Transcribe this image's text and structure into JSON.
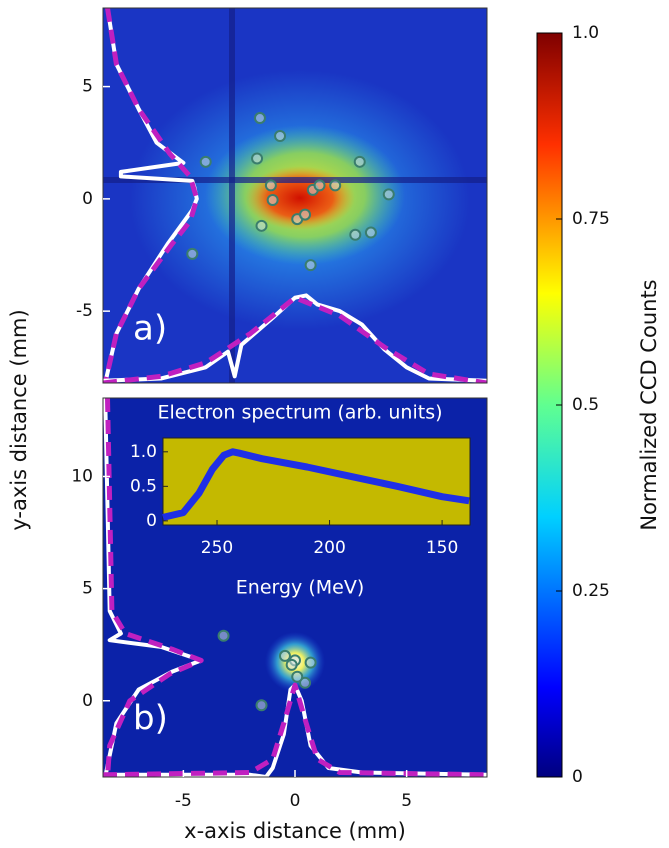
{
  "axis_labels": {
    "x": "x-axis distance (mm)",
    "y": "y-axis distance (mm)"
  },
  "chart_data": [
    {
      "type": "image",
      "label": "a)",
      "xlim": [
        -8.6,
        8.6
      ],
      "ylim": [
        -8.2,
        8.5
      ],
      "yticks": [
        -5,
        0,
        5
      ],
      "points": {
        "color": "#3a7d6d",
        "x": [
          -1.57,
          -0.67,
          -4.0,
          -1.7,
          2.9,
          4.2,
          -1.08,
          -1.0,
          0.8,
          1.1,
          1.8,
          -1.5,
          0.1,
          0.45,
          2.7,
          3.4,
          0.7,
          -4.6
        ],
        "y": [
          3.6,
          2.8,
          1.65,
          1.8,
          1.65,
          0.2,
          0.6,
          -0.05,
          0.4,
          0.6,
          0.6,
          -1.2,
          -0.9,
          -0.7,
          -1.6,
          -1.5,
          -2.95,
          -2.45
        ]
      },
      "profiles": [
        {
          "orientation": "vertical",
          "color": "#ffffff",
          "dashed": false,
          "y": [
            8.5,
            6,
            4,
            2.5,
            1.6,
            1.2,
            1.0,
            0.8,
            0.5,
            0,
            -0.5,
            -2,
            -4,
            -6,
            -8.2
          ],
          "x": [
            -8.4,
            -8.0,
            -7.0,
            -6.2,
            -5.0,
            -7.8,
            -7.8,
            -4.6,
            -4.5,
            -4.4,
            -4.6,
            -5.7,
            -7.0,
            -8.0,
            -8.5
          ]
        },
        {
          "orientation": "vertical",
          "color": "#c020c0",
          "dashed": true,
          "y": [
            8.5,
            6,
            4,
            2,
            1,
            0,
            -1,
            -2,
            -4,
            -6,
            -8.2
          ],
          "x": [
            -8.4,
            -8.0,
            -7.0,
            -5.6,
            -4.7,
            -4.4,
            -4.7,
            -5.5,
            -7.0,
            -8.0,
            -8.5
          ]
        },
        {
          "orientation": "horizontal",
          "color": "#ffffff",
          "dashed": false,
          "x": [
            -8.6,
            -6,
            -4,
            -3,
            -2.7,
            -2.4,
            -1,
            0,
            0.5,
            1,
            2,
            3,
            4,
            5,
            6,
            8.6
          ],
          "y": [
            -8.1,
            -8.0,
            -7.5,
            -6.8,
            -7.9,
            -6.5,
            -5.3,
            -4.4,
            -4.3,
            -4.7,
            -5.0,
            -5.6,
            -6.7,
            -7.5,
            -8.0,
            -8.1
          ]
        },
        {
          "orientation": "horizontal",
          "color": "#c020c0",
          "dashed": true,
          "x": [
            -8.6,
            -6,
            -4,
            -2,
            0,
            2,
            4,
            6,
            8.6
          ],
          "y": [
            -8.2,
            -7.9,
            -7.3,
            -6.0,
            -4.4,
            -5.2,
            -6.6,
            -7.8,
            -8.2
          ]
        }
      ]
    },
    {
      "type": "image",
      "label": "b)",
      "xlim": [
        -8.6,
        8.6
      ],
      "ylim": [
        -3.4,
        13.5
      ],
      "xticks": [
        -5,
        0,
        5
      ],
      "yticks": [
        0,
        5,
        10
      ],
      "points": {
        "color": "#3a7d6d",
        "x": [
          -3.2,
          -1.5,
          -0.45,
          0,
          -0.15,
          0.7,
          0.45,
          0.1
        ],
        "y": [
          2.9,
          -0.2,
          2.0,
          1.8,
          1.6,
          1.7,
          0.8,
          1.07
        ]
      },
      "profiles": [
        {
          "orientation": "vertical",
          "color": "#ffffff",
          "dashed": false,
          "y": [
            13.5,
            4,
            3.0,
            2.7,
            2.4,
            1.8,
            1.3,
            0.5,
            -1,
            -3.4
          ],
          "x": [
            -8.5,
            -8.3,
            -7.8,
            -8.3,
            -6.0,
            -4.2,
            -5.5,
            -7.0,
            -8.0,
            -8.5
          ]
        },
        {
          "orientation": "vertical",
          "color": "#c020c0",
          "dashed": true,
          "y": [
            13.5,
            4,
            3,
            2.3,
            1.8,
            1.2,
            0,
            -2,
            -3.4
          ],
          "x": [
            -8.4,
            -8.2,
            -7.6,
            -5.5,
            -4.2,
            -5.6,
            -7.4,
            -8.3,
            -8.4
          ]
        },
        {
          "orientation": "horizontal",
          "color": "#ffffff",
          "dashed": false,
          "x": [
            -8.6,
            -2,
            -1.3,
            -1,
            -0.5,
            -0.2,
            0,
            0.3,
            0.7,
            1.5,
            3,
            8.6
          ],
          "y": [
            -3.3,
            -3.3,
            -3.4,
            -3.0,
            -1.5,
            0.5,
            0.7,
            0,
            -2.0,
            -3.0,
            -3.2,
            -3.3
          ]
        },
        {
          "orientation": "horizontal",
          "color": "#c020c0",
          "dashed": true,
          "x": [
            -8.6,
            -2,
            -1,
            -0.5,
            0,
            0.5,
            1,
            2,
            8.6
          ],
          "y": [
            -3.3,
            -3.2,
            -2.6,
            -1.0,
            0.7,
            -1.0,
            -2.6,
            -3.2,
            -3.3
          ]
        }
      ]
    },
    {
      "type": "line",
      "title": "Electron spectrum (arb. units)",
      "xlabel": "Energy (MeV)",
      "xlim": [
        274,
        137.6
      ],
      "xticks": [
        250,
        200,
        150
      ],
      "ylim": [
        -0.06,
        1.2
      ],
      "yticks": [
        0,
        0.5,
        {
          "value": 1,
          "label": "1.0"
        }
      ],
      "color": "#1f2fe6",
      "background": "#c4b900",
      "x": [
        274,
        265,
        258,
        252,
        247,
        243,
        240,
        230,
        210,
        190,
        170,
        150,
        138
      ],
      "values": [
        0.05,
        0.12,
        0.4,
        0.75,
        0.95,
        1.0,
        0.98,
        0.9,
        0.78,
        0.64,
        0.5,
        0.35,
        0.29
      ]
    },
    {
      "type": "colorbar",
      "label": "Normalized CCD Counts",
      "ylim": [
        0,
        1
      ],
      "yticks": [
        0,
        0.25,
        0.5,
        0.75,
        {
          "value": 1,
          "label": "1.0"
        }
      ]
    }
  ]
}
